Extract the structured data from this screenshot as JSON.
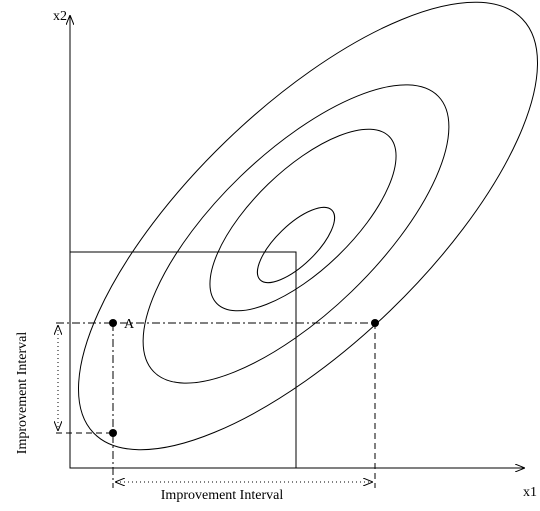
{
  "axes": {
    "x_label": "x1",
    "y_label": "x2"
  },
  "point_label": "A",
  "intervals": {
    "vertical_label": "Improvement Interval",
    "horizontal_label": "Improvement Interval"
  }
}
